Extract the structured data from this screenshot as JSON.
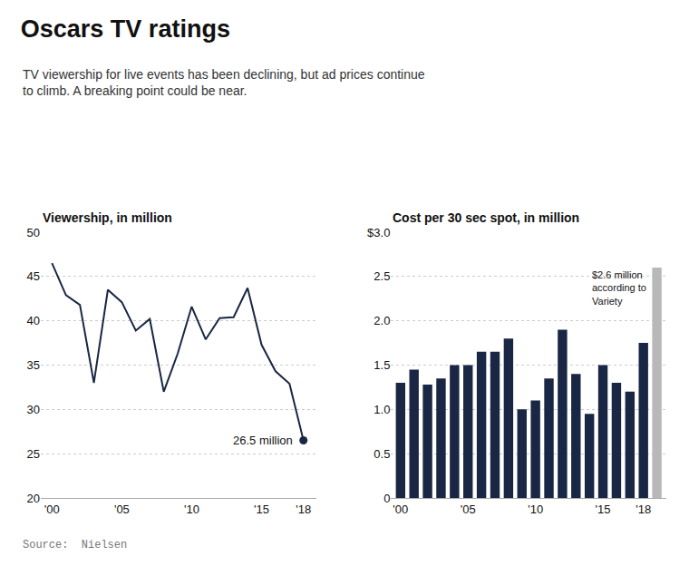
{
  "title": "Oscars TV ratings",
  "subtitle": "TV viewership for live events has been declining, but ad prices continue\nto climb. A breaking point could be near.",
  "source": "Source:  Nielsen",
  "chart_data": [
    {
      "type": "line",
      "title": "Viewership, in million",
      "x": [
        2000,
        2001,
        2002,
        2003,
        2004,
        2005,
        2006,
        2007,
        2008,
        2009,
        2010,
        2011,
        2012,
        2013,
        2014,
        2015,
        2016,
        2017,
        2018
      ],
      "values": [
        46.5,
        42.9,
        41.8,
        33.0,
        43.5,
        42.1,
        38.9,
        40.2,
        32.0,
        36.3,
        41.6,
        37.9,
        40.3,
        40.4,
        43.7,
        37.3,
        34.3,
        32.9,
        26.5
      ],
      "color": "#1a2744",
      "annotations": [
        "26.5 million"
      ],
      "xlim": [
        1999.2,
        2018.9
      ],
      "xticks": [
        {
          "value": 2000,
          "label": "'00"
        },
        {
          "value": 2005,
          "label": "'05"
        },
        {
          "value": 2010,
          "label": "'10"
        },
        {
          "value": 2015,
          "label": "'15"
        },
        {
          "value": 2018,
          "label": "'18"
        }
      ],
      "ylim": [
        20,
        50
      ],
      "yticks": [
        20,
        25,
        30,
        35,
        40,
        45,
        50
      ],
      "grid": true
    },
    {
      "type": "bar",
      "title": "Cost per 30 sec spot, in million",
      "x": [
        2000,
        2001,
        2002,
        2003,
        2004,
        2005,
        2006,
        2007,
        2008,
        2009,
        2010,
        2011,
        2012,
        2013,
        2014,
        2015,
        2016,
        2017,
        2018,
        2019
      ],
      "values": [
        1.3,
        1.45,
        1.28,
        1.35,
        1.5,
        1.5,
        1.65,
        1.65,
        1.8,
        1.0,
        1.1,
        1.35,
        1.9,
        1.4,
        0.95,
        1.5,
        1.3,
        1.2,
        1.75,
        2.6
      ],
      "colors": [
        "#1a2744",
        "#1a2744",
        "#1a2744",
        "#1a2744",
        "#1a2744",
        "#1a2744",
        "#1a2744",
        "#1a2744",
        "#1a2744",
        "#1a2744",
        "#1a2744",
        "#1a2744",
        "#1a2744",
        "#1a2744",
        "#1a2744",
        "#1a2744",
        "#1a2744",
        "#1a2744",
        "#1a2744",
        "#b8b8b8"
      ],
      "annotations": [
        "$2.6 million\naccording to\nVariety"
      ],
      "xlim": [
        1999.3,
        2019.7
      ],
      "xticks": [
        {
          "value": 2000,
          "label": "'00"
        },
        {
          "value": 2005,
          "label": "'05"
        },
        {
          "value": 2010,
          "label": "'10"
        },
        {
          "value": 2015,
          "label": "'15"
        },
        {
          "value": 2018,
          "label": "'18"
        }
      ],
      "ylim": [
        0,
        3.0
      ],
      "yticks": [
        0,
        0.5,
        {
          "value": 1.0,
          "label": "1.0"
        },
        1.5,
        {
          "value": 2.0,
          "label": "2.0"
        },
        2.5,
        {
          "value": 3.0,
          "label": "$3.0"
        }
      ],
      "grid": true
    }
  ]
}
